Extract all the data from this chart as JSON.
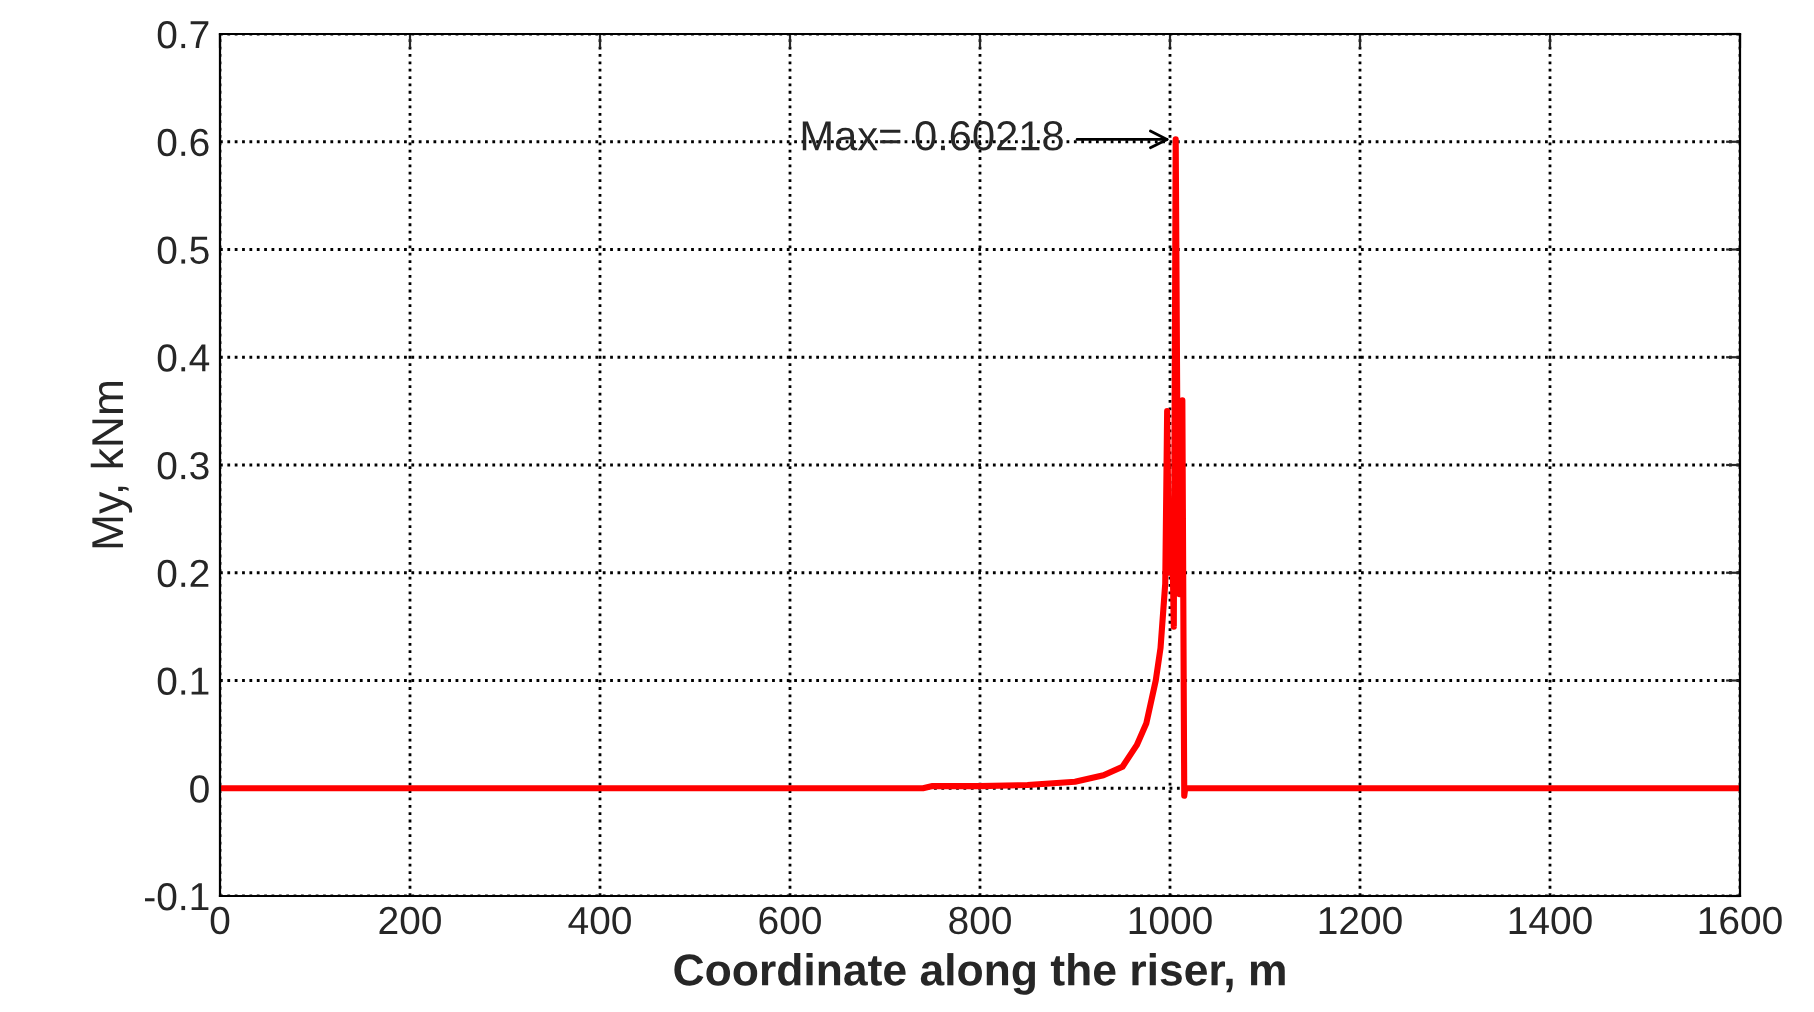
{
  "chart_data": {
    "type": "line",
    "xlabel": "Coordinate along the riser, m",
    "ylabel": "My, kNm",
    "series": [
      {
        "color": "#ff0000",
        "x": [
          0,
          740,
          750,
          800,
          850,
          900,
          930,
          950,
          965,
          975,
          985,
          990,
          995,
          997,
          999,
          1002,
          1004,
          1006,
          1008,
          1010,
          1013,
          1015,
          1016,
          1600
        ],
        "values": [
          0,
          0,
          0.002,
          0.002,
          0.003,
          0.006,
          0.012,
          0.02,
          0.04,
          0.06,
          0.1,
          0.13,
          0.19,
          0.35,
          0.2,
          0.25,
          0.15,
          0.60218,
          0.3,
          0.18,
          0.36,
          -0.007,
          0,
          0
        ]
      }
    ],
    "xlim": [
      0,
      1600
    ],
    "xticks": [
      0,
      200,
      400,
      600,
      800,
      1000,
      1200,
      1400,
      1600
    ],
    "ylim": [
      -0.1,
      0.7
    ],
    "yticks": [
      -0.1,
      0,
      0.1,
      0.2,
      0.3,
      0.4,
      0.5,
      0.6,
      0.7
    ],
    "grid": true,
    "line_style": "solid",
    "marker": "none",
    "annotations": [
      {
        "text": "Max= 0.60218",
        "x": 1006,
        "y": 0.60218
      }
    ]
  }
}
